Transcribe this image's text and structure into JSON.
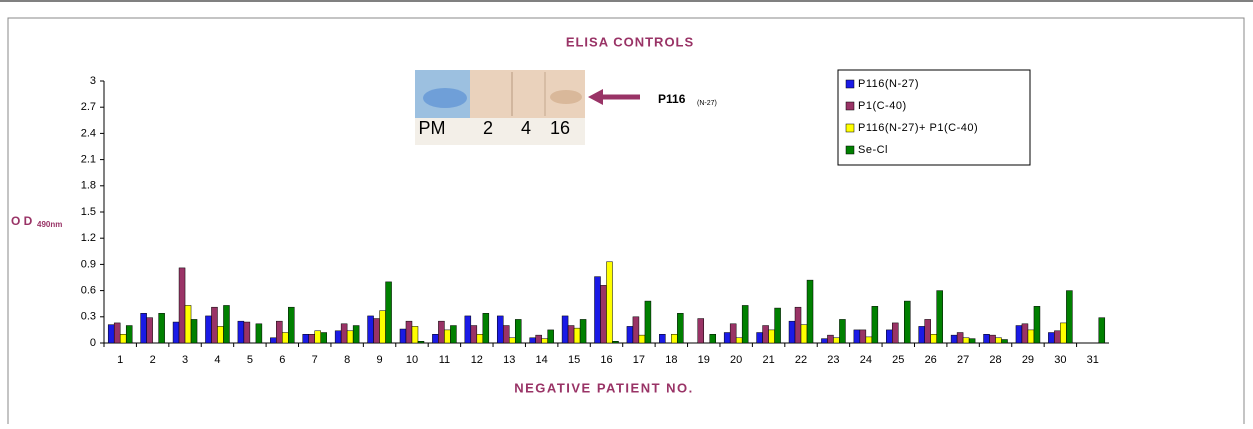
{
  "chart_data": {
    "type": "bar",
    "title": "ELISA CONTROLS",
    "x_label": "NEGATIVE PATIENT NO.",
    "y_label": "O D",
    "y_label_sub": "490nm",
    "categories": [
      "1",
      "2",
      "3",
      "4",
      "5",
      "6",
      "7",
      "8",
      "9",
      "10",
      "11",
      "12",
      "13",
      "14",
      "15",
      "16",
      "17",
      "18",
      "19",
      "20",
      "21",
      "22",
      "23",
      "24",
      "25",
      "26",
      "27",
      "28",
      "29",
      "30",
      "31"
    ],
    "series": [
      {
        "name": "P116(N-27)",
        "color": "#1a1ae6",
        "values": [
          0.21,
          0.34,
          0.24,
          0.31,
          0.25,
          0.06,
          0.1,
          0.14,
          0.31,
          0.16,
          0.1,
          0.31,
          0.31,
          0.06,
          0.31,
          0.76,
          0.19,
          0.1,
          0,
          0.12,
          0.12,
          0.25,
          0.05,
          0.15,
          0.15,
          0.19,
          0.09,
          0.1,
          0.2,
          0.12,
          0
        ]
      },
      {
        "name": "P1(C-40)",
        "color": "#993366",
        "values": [
          0.23,
          0.29,
          0.86,
          0.41,
          0.24,
          0.25,
          0.1,
          0.22,
          0.28,
          0.25,
          0.25,
          0.2,
          0.2,
          0.09,
          0.2,
          0.66,
          0.3,
          0,
          0.28,
          0.22,
          0.2,
          0.41,
          0.09,
          0.15,
          0.23,
          0.27,
          0.12,
          0.09,
          0.22,
          0.14,
          0
        ]
      },
      {
        "name": "P116(N-27)+ P1(C-40)",
        "color": "#ffff00",
        "values": [
          0.1,
          0,
          0.43,
          0.19,
          0,
          0.12,
          0.14,
          0.14,
          0.37,
          0.19,
          0.15,
          0.1,
          0.06,
          0.05,
          0.17,
          0.93,
          0.09,
          0.1,
          0,
          0.06,
          0.15,
          0.21,
          0.06,
          0.07,
          0,
          0.1,
          0.06,
          0.06,
          0.15,
          0.23,
          0
        ]
      },
      {
        "name": "Se-Cl",
        "color": "#008000",
        "values": [
          0.2,
          0.34,
          0.27,
          0.43,
          0.22,
          0.41,
          0.12,
          0.2,
          0.7,
          0.02,
          0.2,
          0.34,
          0.27,
          0.15,
          0.27,
          0.02,
          0.48,
          0.34,
          0.1,
          0.43,
          0.4,
          0.72,
          0.27,
          0.42,
          0.48,
          0.6,
          0.05,
          0.04,
          0.42,
          0.6,
          0.29
        ]
      }
    ],
    "ylim": [
      0,
      3
    ],
    "yticks": [
      0,
      0.3,
      0.6,
      0.9,
      1.2,
      1.5,
      1.8,
      2.1,
      2.4,
      2.7,
      3
    ],
    "inset": {
      "lane_labels": [
        "PM",
        "2",
        "4",
        "16"
      ],
      "band_label": "P116",
      "band_label_sub": "(N-27)"
    }
  }
}
